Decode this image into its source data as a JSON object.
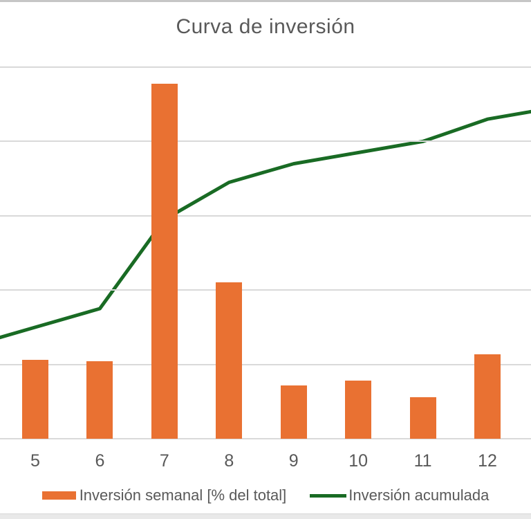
{
  "title": "Curva de inversión",
  "legend": {
    "position": "bottom",
    "items": [
      {
        "label": "Inversión semanal [% del total]",
        "swatch": "bar",
        "color": "#E97132"
      },
      {
        "label": "Inversión acumulada",
        "swatch": "line",
        "color": "#196B24"
      }
    ]
  },
  "colors": {
    "bar": "#E97132",
    "line": "#196B24",
    "gridline": "#D9D9D9",
    "text": "#595959",
    "background": "#FFFFFF",
    "top_border": "#C6C6C6",
    "bottom_strip": "#E9E9E9"
  },
  "chart_data": {
    "type": "combo bar+line",
    "title": "Curva de inversión",
    "categories": [
      5,
      6,
      7,
      8,
      9,
      10,
      11,
      12
    ],
    "series": [
      {
        "name": "Inversión semanal [% del total]",
        "type": "bar",
        "axis": "secondary",
        "values": [
          5.3,
          5.2,
          23.9,
          10.5,
          3.6,
          3.9,
          2.8,
          5.7
        ]
      },
      {
        "name": "Inversión acumulada",
        "type": "line",
        "axis": "primary",
        "values": [
          30,
          35,
          59,
          69,
          74,
          77,
          80,
          86
        ]
      }
    ],
    "line_offscreen": {
      "left": {
        "x": 4,
        "value": 25
      },
      "right": {
        "x": 13,
        "value": 89
      }
    },
    "primary_ylim": [
      0,
      100
    ],
    "secondary_ylim": [
      0,
      25
    ],
    "gridline_values_primary": [
      0,
      20,
      40,
      60,
      80,
      100
    ],
    "grid": true,
    "y_axis_labels_visible": false,
    "x_cropped_left": true,
    "legend_position": "bottom"
  }
}
